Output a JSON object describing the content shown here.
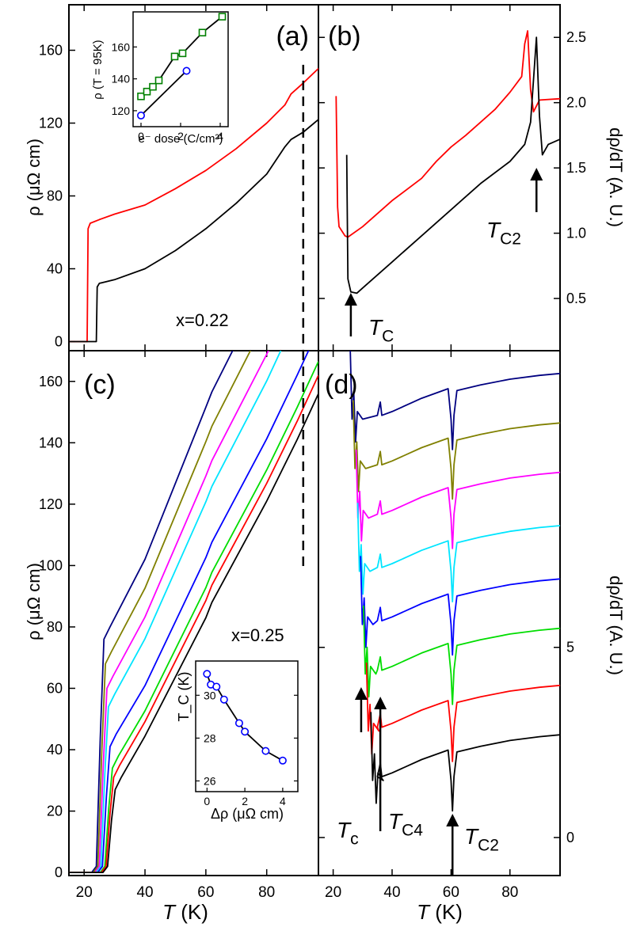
{
  "chart_data": [
    {
      "panel": "a",
      "type": "line",
      "panel_label": "(a)",
      "ylabel": "ρ (μΩ cm)",
      "yticks": [
        "0",
        "40",
        "80",
        "120",
        "160"
      ],
      "ylim": [
        -5,
        185
      ],
      "xlim": [
        15,
        97
      ],
      "annotation": "x=0.22",
      "dashed_line_x": 92,
      "series": [
        {
          "color": "#ff0000",
          "x": [
            15,
            21,
            21.3,
            22,
            25,
            30,
            40,
            50,
            60,
            70,
            80,
            86,
            88,
            92,
            97
          ],
          "y": [
            0,
            0,
            62,
            65,
            67,
            70,
            75,
            84,
            94,
            106,
            120,
            130,
            136,
            142,
            150
          ]
        },
        {
          "color": "#000000",
          "x": [
            15,
            24,
            24.3,
            25,
            30,
            40,
            50,
            60,
            70,
            80,
            86,
            88,
            92,
            97
          ],
          "y": [
            0,
            0,
            30,
            32,
            34,
            40,
            50,
            62,
            76,
            92,
            107,
            111,
            115,
            122
          ]
        }
      ],
      "inset": {
        "xlabel": "e⁻ dose (C/cm²)",
        "ylabel": "ρ (T = 95K)",
        "yticks": [
          "120",
          "140",
          "160"
        ],
        "xticks": [
          "0",
          "2",
          "4"
        ],
        "xlim": [
          -0.4,
          4.4
        ],
        "ylim": [
          110,
          182
        ],
        "series": [
          {
            "color": "#008000",
            "marker": "square",
            "x": [
              0,
              0.3,
              0.6,
              0.9,
              1.7,
              2.1,
              3.1,
              4.1
            ],
            "y": [
              129,
              132,
              135,
              139,
              154,
              156,
              169,
              179
            ]
          },
          {
            "color": "#0000ff",
            "marker": "circle",
            "x": [
              0,
              2.3
            ],
            "y": [
              117,
              145
            ]
          }
        ]
      }
    },
    {
      "panel": "b",
      "type": "line",
      "panel_label": "(b)",
      "ylabel": "dρ/dT (A. U.)",
      "yticks": [
        "0.5",
        "1.0",
        "1.5",
        "2.0",
        "2.5"
      ],
      "ylim": [
        0.1,
        2.75
      ],
      "xlim": [
        15,
        97
      ],
      "annotations": [
        {
          "text": "T",
          "sub": "C",
          "x": 26
        },
        {
          "text": "T",
          "sub": "C2",
          "x": 89
        }
      ],
      "series": [
        {
          "color": "#ff0000",
          "x": [
            21,
            21.5,
            22,
            24,
            25,
            30,
            40,
            50,
            55,
            60,
            65,
            70,
            75,
            80,
            84,
            85,
            86,
            87,
            88,
            90,
            97
          ],
          "y": [
            2.05,
            1.2,
            1.05,
            0.98,
            0.97,
            1.05,
            1.25,
            1.42,
            1.55,
            1.66,
            1.75,
            1.85,
            1.95,
            2.08,
            2.2,
            2.45,
            2.55,
            2.1,
            1.93,
            2.02,
            2.03
          ]
        },
        {
          "color": "#000000",
          "x": [
            24.6,
            25,
            26,
            28,
            30,
            40,
            50,
            60,
            70,
            80,
            85,
            87,
            89,
            90,
            91,
            93,
            97
          ],
          "y": [
            1.6,
            0.65,
            0.55,
            0.54,
            0.58,
            0.78,
            0.98,
            1.18,
            1.38,
            1.55,
            1.68,
            1.85,
            2.5,
            1.9,
            1.6,
            1.68,
            1.72
          ]
        }
      ]
    },
    {
      "panel": "c",
      "type": "line",
      "panel_label": "(c)",
      "ylabel": "ρ (μΩ cm)",
      "xlabel": "T (K)",
      "yticks": [
        "0",
        "20",
        "40",
        "60",
        "80",
        "100",
        "120",
        "140",
        "160"
      ],
      "xticks": [
        "20",
        "40",
        "60",
        "80"
      ],
      "ylim": [
        -1,
        170
      ],
      "xlim": [
        15,
        97
      ],
      "annotation": "x=0.25",
      "dashed_line_x": 92,
      "series": [
        {
          "color": "#000080",
          "tc": 26.5,
          "base": 80
        },
        {
          "color": "#808000",
          "tc": 27,
          "base": 72
        },
        {
          "color": "#ff00ff",
          "tc": 27.5,
          "base": 64
        },
        {
          "color": "#00e5ff",
          "tc": 28,
          "base": 58
        },
        {
          "color": "#0000ff",
          "tc": 28.5,
          "base": 45
        },
        {
          "color": "#00dd00",
          "tc": 29.3,
          "base": 38
        },
        {
          "color": "#ff0000",
          "tc": 29.7,
          "base": 35
        },
        {
          "color": "#000000",
          "tc": 30.2,
          "base": 31
        }
      ],
      "inset": {
        "xlabel": "Δρ (μΩ cm)",
        "ylabel": "T_C (K)",
        "yticks": [
          "26",
          "28",
          "30"
        ],
        "xticks": [
          "0",
          "2",
          "4"
        ],
        "xlim": [
          -0.6,
          4.8
        ],
        "ylim": [
          25.5,
          31.6
        ],
        "series": [
          {
            "color": "#0000ff",
            "marker": "circle",
            "x": [
              0,
              0.2,
              0.5,
              0.9,
              1.7,
              2.0,
              3.1,
              4.0
            ],
            "y": [
              31.0,
              30.5,
              30.4,
              29.8,
              28.7,
              28.3,
              27.4,
              26.95
            ]
          }
        ]
      }
    },
    {
      "panel": "d",
      "type": "line",
      "panel_label": "(d)",
      "ylabel": "dρ/dT (A. U.)",
      "xlabel": "T (K)",
      "yticks": [
        "0",
        "5"
      ],
      "xticks": [
        "20",
        "40",
        "60",
        "80"
      ],
      "ylim": [
        -1,
        12.8
      ],
      "xlim": [
        15,
        97
      ],
      "annotations": [
        {
          "text": "T",
          "sub": "c",
          "x": 29.5
        },
        {
          "text": "T",
          "sub": "C4",
          "x": 36
        },
        {
          "text": "T",
          "sub": "C2",
          "x": 60.5
        }
      ],
      "series": [
        {
          "color": "#000080",
          "tc": 27,
          "offset": 11.3
        },
        {
          "color": "#808000",
          "tc": 28,
          "offset": 10.0
        },
        {
          "color": "#ff00ff",
          "tc": 29,
          "offset": 8.7
        },
        {
          "color": "#00e5ff",
          "tc": 29.5,
          "offset": 7.3
        },
        {
          "color": "#0000ff",
          "tc": 30.5,
          "offset": 5.9
        },
        {
          "color": "#00dd00",
          "tc": 31.5,
          "offset": 4.6
        },
        {
          "color": "#ff0000",
          "tc": 32.5,
          "offset": 3.1
        },
        {
          "color": "#000000",
          "tc": 34,
          "offset": 1.8
        }
      ]
    }
  ],
  "shared_xlabel": "T (K)"
}
